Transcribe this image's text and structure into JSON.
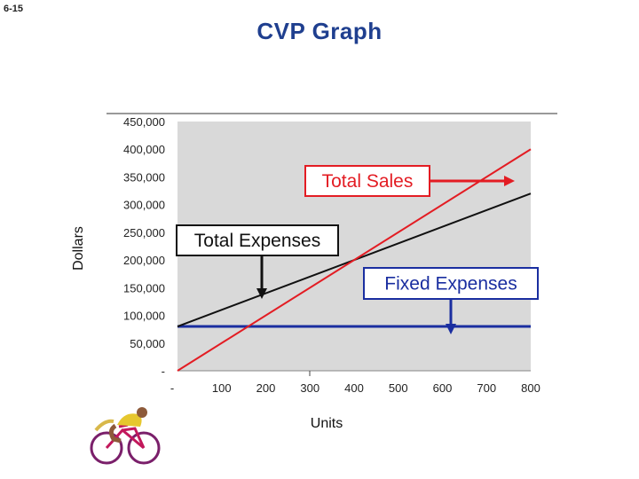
{
  "slide": {
    "number": "6-15",
    "title": "CVP Graph"
  },
  "chart_data": {
    "type": "line",
    "title": "CVP Graph",
    "xlabel": "Units",
    "ylabel": "Dollars",
    "xlim": [
      0,
      800
    ],
    "ylim": [
      0,
      450000
    ],
    "x_ticks": [
      0,
      100,
      200,
      300,
      400,
      500,
      600,
      700,
      800
    ],
    "x_tick_labels": [
      "-",
      "100",
      "200",
      "300",
      "400",
      "500",
      "600",
      "700",
      "800"
    ],
    "y_ticks": [
      0,
      50000,
      100000,
      150000,
      200000,
      250000,
      300000,
      350000,
      400000,
      450000
    ],
    "y_tick_labels": [
      "-",
      "50,000",
      "100,000",
      "150,000",
      "200,000",
      "250,000",
      "300,000",
      "350,000",
      "400,000",
      "450,000"
    ],
    "series": [
      {
        "name": "Total Sales",
        "color": "#e31c23",
        "points": [
          [
            0,
            0
          ],
          [
            800,
            400000
          ]
        ]
      },
      {
        "name": "Total Expenses",
        "color": "#111111",
        "points": [
          [
            0,
            80000
          ],
          [
            800,
            320000
          ]
        ]
      },
      {
        "name": "Fixed Expenses",
        "color": "#1a2ea0",
        "points": [
          [
            0,
            80000
          ],
          [
            800,
            80000
          ]
        ]
      }
    ],
    "annotations": [
      {
        "text": "Total Sales",
        "series": "Total Sales",
        "color": "#e31c23",
        "border": "#e31c23"
      },
      {
        "text": "Total Expenses",
        "series": "Total Expenses",
        "color": "#111111",
        "border": "#111111"
      },
      {
        "text": "Fixed Expenses",
        "series": "Fixed Expenses",
        "color": "#1a2ea0",
        "border": "#1a2ea0"
      }
    ],
    "plot_background": "#d9d9d9"
  },
  "decoration": {
    "icon": "cyclist-icon"
  }
}
